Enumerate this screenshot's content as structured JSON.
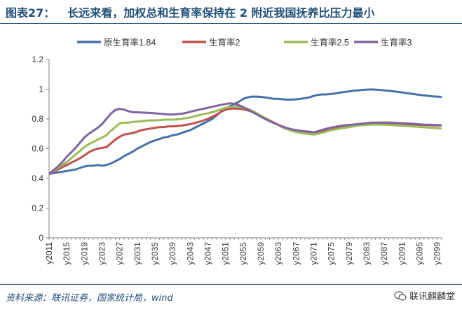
{
  "header": {
    "figure_label": "图表27：",
    "figure_title": "长远来看，加权总和生育率保持在 2 附近我国抚养比压力最小"
  },
  "footer": {
    "source": "资料来源：联讯证券，国家统计局，wind",
    "brand": "联讯麒麟堂"
  },
  "chart_data": {
    "type": "line",
    "title": "长远来看，加权总和生育率保持在 2 附近我国抚养比压力最小",
    "xlabel": "",
    "ylabel": "",
    "ylim": [
      0,
      1.2
    ],
    "yticks": [
      "0",
      "0.2",
      "0.4",
      "0.6",
      "0.8",
      "1",
      "1.2"
    ],
    "xtick_labels": [
      "y2011",
      "y2015",
      "y2019",
      "y2023",
      "y2027",
      "y2031",
      "y2035",
      "y2039",
      "y2043",
      "y2047",
      "y2051",
      "y2055",
      "y2059",
      "y2063",
      "y2067",
      "y2071",
      "y2075",
      "y2079",
      "y2083",
      "y2087",
      "y2091",
      "y2095",
      "y2099"
    ],
    "x": [
      2011,
      2012,
      2013,
      2014,
      2015,
      2016,
      2017,
      2018,
      2019,
      2020,
      2021,
      2022,
      2023,
      2024,
      2025,
      2026,
      2027,
      2028,
      2029,
      2030,
      2031,
      2032,
      2033,
      2034,
      2035,
      2036,
      2037,
      2038,
      2039,
      2040,
      2041,
      2042,
      2043,
      2044,
      2045,
      2046,
      2047,
      2048,
      2049,
      2050,
      2051,
      2052,
      2053,
      2054,
      2055,
      2056,
      2057,
      2058,
      2059,
      2060,
      2061,
      2062,
      2063,
      2064,
      2065,
      2066,
      2067,
      2068,
      2069,
      2070,
      2071,
      2072,
      2073,
      2074,
      2075,
      2076,
      2077,
      2078,
      2079,
      2080,
      2081,
      2082,
      2083,
      2084,
      2085,
      2086,
      2087,
      2088,
      2089,
      2090,
      2091,
      2092,
      2093,
      2094,
      2095,
      2096,
      2097,
      2098,
      2099,
      2100
    ],
    "legend_position": "top",
    "series": [
      {
        "name": "原生育率1.84",
        "color": "#4472a8",
        "values": [
          0.43,
          0.435,
          0.44,
          0.445,
          0.45,
          0.455,
          0.46,
          0.47,
          0.48,
          0.485,
          0.485,
          0.49,
          0.485,
          0.49,
          0.5,
          0.515,
          0.53,
          0.55,
          0.565,
          0.58,
          0.6,
          0.615,
          0.63,
          0.645,
          0.655,
          0.665,
          0.675,
          0.68,
          0.69,
          0.695,
          0.705,
          0.715,
          0.725,
          0.74,
          0.755,
          0.77,
          0.785,
          0.8,
          0.825,
          0.85,
          0.87,
          0.885,
          0.9,
          0.915,
          0.935,
          0.945,
          0.95,
          0.95,
          0.948,
          0.945,
          0.94,
          0.935,
          0.935,
          0.932,
          0.93,
          0.93,
          0.932,
          0.935,
          0.94,
          0.945,
          0.955,
          0.962,
          0.965,
          0.965,
          0.968,
          0.972,
          0.977,
          0.982,
          0.985,
          0.99,
          0.992,
          0.995,
          0.997,
          0.998,
          0.997,
          0.995,
          0.992,
          0.99,
          0.986,
          0.982,
          0.978,
          0.974,
          0.97,
          0.966,
          0.962,
          0.958,
          0.955,
          0.952,
          0.95,
          0.948
        ]
      },
      {
        "name": "生育率2",
        "color": "#c0504d",
        "values": [
          0.43,
          0.445,
          0.46,
          0.475,
          0.49,
          0.505,
          0.52,
          0.535,
          0.555,
          0.575,
          0.59,
          0.6,
          0.605,
          0.61,
          0.635,
          0.66,
          0.68,
          0.695,
          0.7,
          0.705,
          0.715,
          0.725,
          0.73,
          0.735,
          0.74,
          0.745,
          0.745,
          0.75,
          0.75,
          0.752,
          0.755,
          0.76,
          0.765,
          0.772,
          0.78,
          0.79,
          0.8,
          0.815,
          0.83,
          0.848,
          0.862,
          0.868,
          0.87,
          0.868,
          0.865,
          0.858,
          0.848,
          0.838,
          0.822,
          0.805,
          0.79,
          0.775,
          0.76,
          0.745,
          0.735,
          0.728,
          0.722,
          0.718,
          0.715,
          0.712,
          0.71,
          0.712,
          0.718,
          0.725,
          0.735,
          0.742,
          0.748,
          0.752,
          0.757,
          0.762,
          0.765,
          0.768,
          0.77,
          0.772,
          0.772,
          0.772,
          0.772,
          0.772,
          0.77,
          0.768,
          0.766,
          0.764,
          0.762,
          0.761,
          0.76,
          0.759,
          0.758,
          0.757,
          0.756,
          0.756
        ]
      },
      {
        "name": "生育率2.5",
        "color": "#9bbb59",
        "values": [
          0.43,
          0.45,
          0.47,
          0.49,
          0.51,
          0.535,
          0.56,
          0.585,
          0.61,
          0.63,
          0.645,
          0.66,
          0.675,
          0.69,
          0.72,
          0.745,
          0.77,
          0.775,
          0.775,
          0.78,
          0.782,
          0.785,
          0.788,
          0.79,
          0.79,
          0.792,
          0.795,
          0.795,
          0.795,
          0.797,
          0.8,
          0.805,
          0.81,
          0.818,
          0.825,
          0.832,
          0.838,
          0.845,
          0.855,
          0.865,
          0.875,
          0.88,
          0.882,
          0.88,
          0.876,
          0.868,
          0.855,
          0.84,
          0.822,
          0.805,
          0.788,
          0.772,
          0.758,
          0.742,
          0.73,
          0.72,
          0.712,
          0.706,
          0.702,
          0.698,
          0.695,
          0.7,
          0.708,
          0.717,
          0.725,
          0.73,
          0.735,
          0.74,
          0.745,
          0.75,
          0.755,
          0.758,
          0.76,
          0.762,
          0.762,
          0.762,
          0.761,
          0.76,
          0.758,
          0.756,
          0.754,
          0.752,
          0.75,
          0.748,
          0.746,
          0.744,
          0.742,
          0.74,
          0.738,
          0.735
        ]
      },
      {
        "name": "生育率3",
        "color": "#8064a2",
        "values": [
          0.43,
          0.455,
          0.48,
          0.51,
          0.545,
          0.575,
          0.605,
          0.64,
          0.675,
          0.7,
          0.72,
          0.74,
          0.765,
          0.8,
          0.835,
          0.86,
          0.868,
          0.862,
          0.852,
          0.845,
          0.845,
          0.843,
          0.842,
          0.84,
          0.838,
          0.835,
          0.833,
          0.83,
          0.83,
          0.832,
          0.835,
          0.84,
          0.848,
          0.855,
          0.862,
          0.868,
          0.875,
          0.882,
          0.888,
          0.895,
          0.9,
          0.905,
          0.902,
          0.892,
          0.88,
          0.865,
          0.848,
          0.832,
          0.815,
          0.8,
          0.785,
          0.772,
          0.76,
          0.748,
          0.738,
          0.73,
          0.725,
          0.72,
          0.717,
          0.714,
          0.71,
          0.718,
          0.727,
          0.735,
          0.742,
          0.748,
          0.753,
          0.757,
          0.76,
          0.762,
          0.765,
          0.768,
          0.772,
          0.775,
          0.775,
          0.775,
          0.776,
          0.776,
          0.775,
          0.773,
          0.771,
          0.77,
          0.768,
          0.766,
          0.764,
          0.762,
          0.761,
          0.76,
          0.759,
          0.758
        ]
      }
    ]
  }
}
